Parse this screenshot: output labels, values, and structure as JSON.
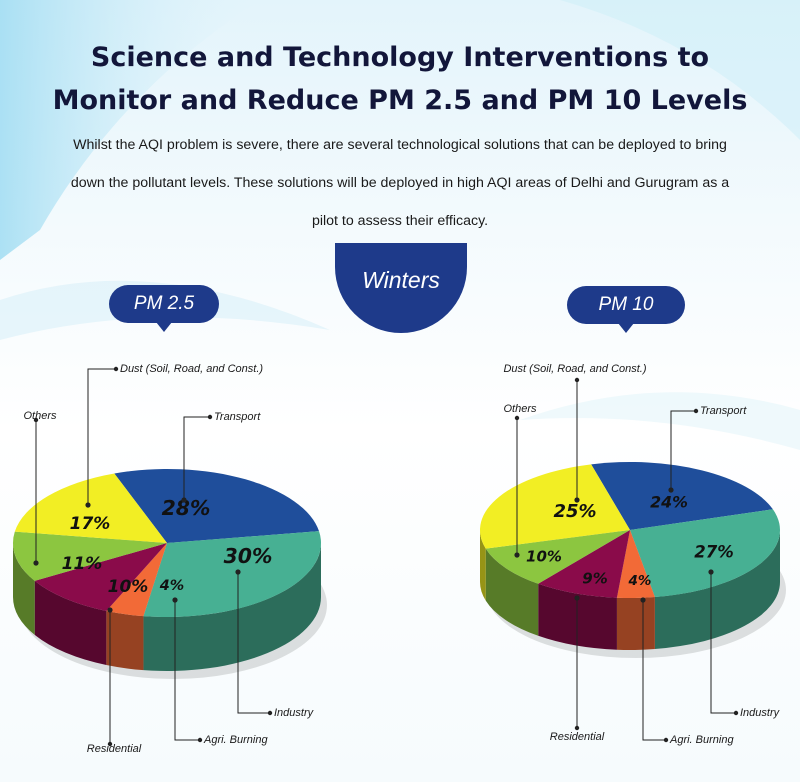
{
  "title_line1": "Science and Technology Interventions to",
  "title_line2": "Monitor and Reduce PM 2.5 and PM 10 Levels",
  "description_line1": "Whilst the AQI problem is severe, there are several technological solutions that can be deployed to bring",
  "description_line2": "down the pollutant levels. These solutions will be deployed in high AQI areas of Delhi and Gurugram as a",
  "description_line3": "pilot to assess their efficacy.",
  "season_label": "Winters",
  "colors": {
    "Transport": "#1f4e9b",
    "Industry": "#47b093",
    "Agri. Burning": "#f26a37",
    "Residential": "#8a0b4a",
    "Others": "#8cc640",
    "Dust (Soil, Road, and Const.)": "#f2ee24"
  },
  "chart_data": [
    {
      "type": "pie",
      "title": "PM 2.5",
      "categories": [
        "Transport",
        "Industry",
        "Agri. Burning",
        "Residential",
        "Others",
        "Dust (Soil, Road, and Const.)"
      ],
      "values": [
        28,
        30,
        4,
        10,
        11,
        17
      ],
      "value_labels": [
        "28%",
        "30%",
        "4%",
        "10%",
        "11%",
        "17%"
      ]
    },
    {
      "type": "pie",
      "title": "PM 10",
      "categories": [
        "Transport",
        "Industry",
        "Agri. Burning",
        "Residential",
        "Others",
        "Dust (Soil, Road, and Const.)"
      ],
      "values": [
        24,
        27,
        4,
        9,
        10,
        25
      ],
      "value_labels": [
        "24%",
        "27%",
        "4%",
        "9%",
        "10%",
        "25%"
      ]
    }
  ]
}
